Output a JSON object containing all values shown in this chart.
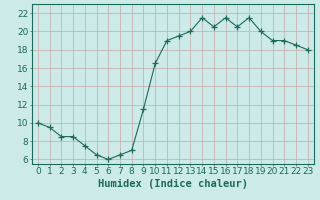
{
  "x": [
    0,
    1,
    2,
    3,
    4,
    5,
    6,
    7,
    8,
    9,
    10,
    11,
    12,
    13,
    14,
    15,
    16,
    17,
    18,
    19,
    20,
    21,
    22,
    23
  ],
  "y": [
    10,
    9.5,
    8.5,
    8.5,
    7.5,
    6.5,
    6.0,
    6.5,
    7.0,
    11.5,
    16.5,
    19.0,
    19.5,
    20.0,
    21.5,
    20.5,
    21.5,
    20.5,
    21.5,
    20.0,
    19.0,
    19.0,
    18.5,
    18.0
  ],
  "line_color": "#1a6b5a",
  "marker": "+",
  "marker_size": 4,
  "bg_color": "#cceae8",
  "grid_color": "#c8a8a8",
  "xlabel": "Humidex (Indice chaleur)",
  "xlim": [
    -0.5,
    23.5
  ],
  "ylim": [
    5.5,
    23.0
  ],
  "yticks": [
    6,
    8,
    10,
    12,
    14,
    16,
    18,
    20,
    22
  ],
  "xticks": [
    0,
    1,
    2,
    3,
    4,
    5,
    6,
    7,
    8,
    9,
    10,
    11,
    12,
    13,
    14,
    15,
    16,
    17,
    18,
    19,
    20,
    21,
    22,
    23
  ],
  "xlabel_fontsize": 7.5,
  "tick_fontsize": 6.5,
  "label_color": "#1a6b5a"
}
